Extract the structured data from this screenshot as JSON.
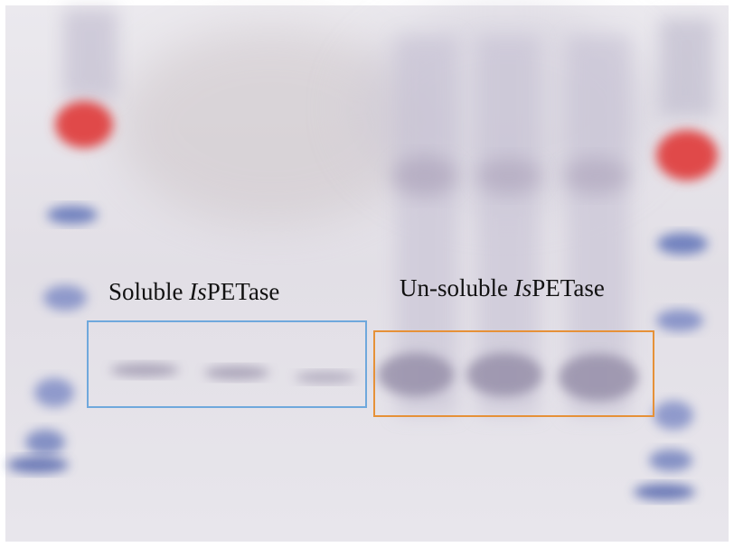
{
  "labels": {
    "soluble": {
      "prefix": "Soluble ",
      "italic": "Is",
      "suffix": "PETase"
    },
    "unsoluble": {
      "prefix": "Un-soluble ",
      "italic": "Is",
      "suffix": "PETase"
    }
  },
  "colors": {
    "gel_background": "#e4e1e6",
    "soluble_box": "#6fa8dc",
    "unsoluble_box": "#e69138",
    "marker_red": "#e04a4a",
    "marker_blue": "#5f72b8",
    "protein_band": "#8f87a3"
  },
  "lanes": {
    "marker_lanes": 2,
    "soluble_lanes": 3,
    "unsoluble_lanes": 3
  }
}
